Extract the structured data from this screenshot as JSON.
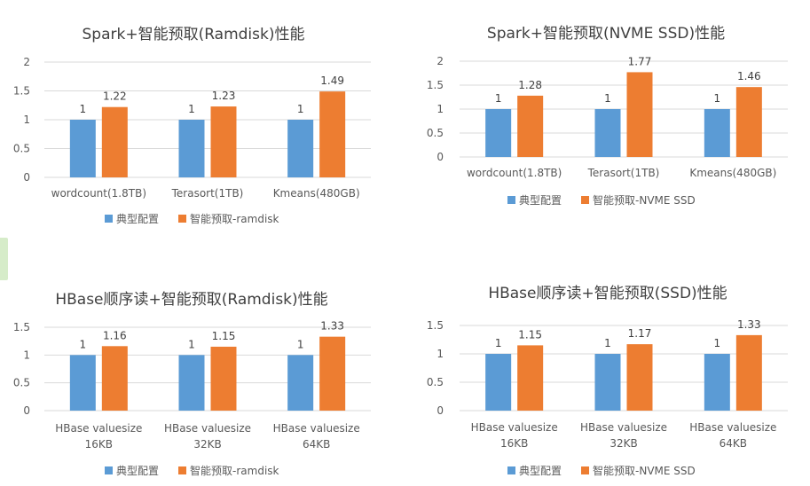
{
  "colors": {
    "baseline": "#5b9bd5",
    "prefetch": "#ed7d31",
    "grid": "#d9d9d9",
    "text": "#595959"
  },
  "chart_data": [
    {
      "type": "bar",
      "title": "Spark+智能预取(Ramdisk)性能",
      "categories": [
        [
          "wordcount(1.8TB)"
        ],
        [
          "Terasort(1TB)"
        ],
        [
          "Kmeans(480GB)"
        ]
      ],
      "series": [
        {
          "name": "典型配置",
          "values": [
            1,
            1,
            1
          ]
        },
        {
          "name": "智能预取-ramdisk",
          "values": [
            1.22,
            1.23,
            1.49
          ]
        }
      ],
      "ylim": [
        0,
        2
      ],
      "yticks": [
        "0",
        "0.5",
        "1",
        "1.5",
        "2"
      ],
      "grid": true,
      "legend": "bottom"
    },
    {
      "type": "bar",
      "title": "Spark+智能预取(NVME SSD)性能",
      "categories": [
        [
          "wordcount(1.8TB)"
        ],
        [
          "Terasort(1TB)"
        ],
        [
          "Kmeans(480GB)"
        ]
      ],
      "series": [
        {
          "name": "典型配置",
          "values": [
            1,
            1,
            1
          ]
        },
        {
          "name": "智能预取-NVME SSD",
          "values": [
            1.28,
            1.77,
            1.46
          ]
        }
      ],
      "ylim": [
        0,
        2
      ],
      "yticks": [
        "0",
        "0.5",
        "1",
        "1.5",
        "2"
      ],
      "grid": true,
      "legend": "bottom"
    },
    {
      "type": "bar",
      "title": "HBase顺序读+智能预取(Ramdisk)性能",
      "categories": [
        [
          "HBase valuesize",
          "16KB"
        ],
        [
          "HBase valuesize",
          "32KB"
        ],
        [
          "HBase valuesize",
          "64KB"
        ]
      ],
      "series": [
        {
          "name": "典型配置",
          "values": [
            1,
            1,
            1
          ]
        },
        {
          "name": "智能预取-ramdisk",
          "values": [
            1.16,
            1.15,
            1.33
          ]
        }
      ],
      "ylim": [
        0,
        1.5
      ],
      "yticks": [
        "0",
        "0.5",
        "1",
        "1.5"
      ],
      "grid": true,
      "legend": "bottom"
    },
    {
      "type": "bar",
      "title": "HBase顺序读+智能预取(SSD)性能",
      "categories": [
        [
          "HBase valuesize",
          "16KB"
        ],
        [
          "HBase valuesize",
          "32KB"
        ],
        [
          "HBase valuesize",
          "64KB"
        ]
      ],
      "series": [
        {
          "name": "典型配置",
          "values": [
            1,
            1,
            1
          ]
        },
        {
          "name": "智能预取-NVME SSD",
          "values": [
            1.15,
            1.17,
            1.33
          ]
        }
      ],
      "ylim": [
        0,
        1.5
      ],
      "yticks": [
        "0",
        "0.5",
        "1",
        "1.5"
      ],
      "grid": true,
      "legend": "bottom"
    }
  ]
}
